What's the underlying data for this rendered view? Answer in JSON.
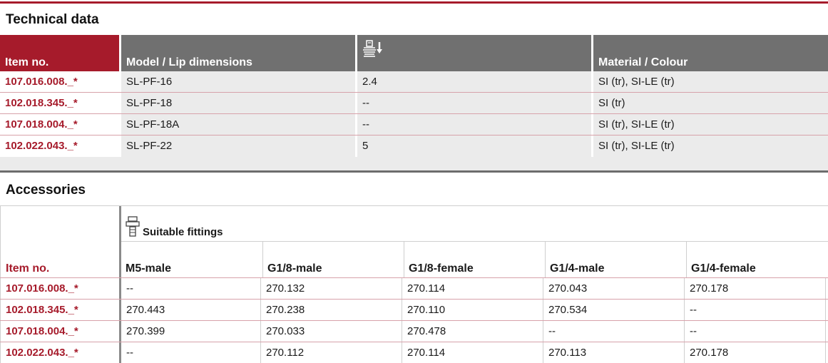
{
  "technical": {
    "title": "Technical data",
    "headers": {
      "item": "Item no.",
      "model": "Model / Lip dimensions",
      "col3_icon": "suction-cup-stroke-icon",
      "material": "Material / Colour"
    },
    "rows": [
      {
        "item": "107.016.008._*",
        "model": "SL-PF-16",
        "value": "2.4",
        "material": "SI (tr), SI-LE (tr)"
      },
      {
        "item": "102.018.345._*",
        "model": "SL-PF-18",
        "value": "--",
        "material": "SI (tr)"
      },
      {
        "item": "107.018.004._*",
        "model": "SL-PF-18A",
        "value": "--",
        "material": "SI (tr), SI-LE (tr)"
      },
      {
        "item": "102.022.043._*",
        "model": "SL-PF-22",
        "value": "5",
        "material": "SI (tr), SI-LE (tr)"
      }
    ]
  },
  "accessories": {
    "title": "Accessories",
    "fittings_label": "Suitable fittings",
    "fittings_icon": "fitting-icon",
    "headers": {
      "item": "Item no.",
      "cols": [
        "M5-male",
        "G1/8-male",
        "G1/8-female",
        "G1/4-male",
        "G1/4-female"
      ]
    },
    "rows": [
      {
        "item": "107.016.008._*",
        "cells": [
          "--",
          "270.132",
          "270.114",
          "270.043",
          "270.178"
        ]
      },
      {
        "item": "102.018.345._*",
        "cells": [
          "270.443",
          "270.238",
          "270.110",
          "270.534",
          "--"
        ]
      },
      {
        "item": "107.018.004._*",
        "cells": [
          "270.399",
          "270.033",
          "270.478",
          "--",
          "--"
        ]
      },
      {
        "item": "102.022.043._*",
        "cells": [
          "--",
          "270.112",
          "270.114",
          "270.113",
          "270.178"
        ]
      }
    ]
  },
  "colors": {
    "accent": "#a61b2b",
    "header_grey": "#707070",
    "row_grey": "#ebebeb"
  }
}
